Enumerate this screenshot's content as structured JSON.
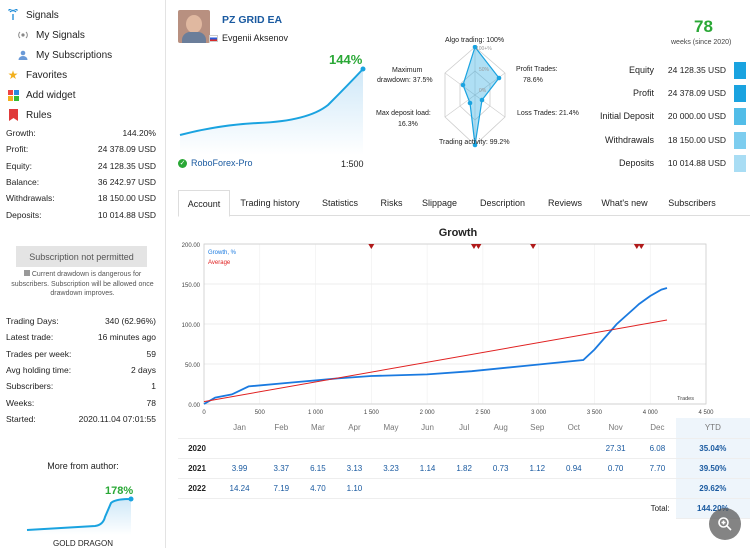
{
  "sidebar": {
    "nav": [
      {
        "label": "Signals",
        "icon": "signal-icon"
      },
      {
        "label": "My Signals",
        "icon": "antenna-icon"
      },
      {
        "label": "My Subscriptions",
        "icon": "subscriptions-icon"
      },
      {
        "label": "Favorites",
        "icon": "star-icon"
      },
      {
        "label": "Add widget",
        "icon": "widget-icon"
      },
      {
        "label": "Rules",
        "icon": "bookmark-icon"
      }
    ],
    "summary": [
      {
        "label": "Growth:",
        "value": "144.20%"
      },
      {
        "label": "Profit:",
        "value": "24 378.09 USD"
      },
      {
        "label": "Equity:",
        "value": "24 128.35 USD"
      },
      {
        "label": "Balance:",
        "value": "36 242.97 USD"
      },
      {
        "label": "Withdrawals:",
        "value": "18 150.00 USD"
      },
      {
        "label": "Deposits:",
        "value": "10 014.88 USD"
      }
    ],
    "subscription_button": "Subscription not permitted",
    "warning": "Current drawdown is dangerous for subscribers. Subscription will be allowed once drawdown improves.",
    "details": [
      {
        "label": "Trading Days:",
        "value": "340 (62.96%)"
      },
      {
        "label": "Latest trade:",
        "value": "16 minutes ago"
      },
      {
        "label": "Trades per week:",
        "value": "59"
      },
      {
        "label": "Avg holding time:",
        "value": "2 days"
      },
      {
        "label": "Subscribers:",
        "value": "1"
      },
      {
        "label": "Weeks:",
        "value": "78"
      },
      {
        "label": "Started:",
        "value": "2020.11.04 07:01:55"
      }
    ],
    "more_title": "More from author:",
    "more_growth": "178%",
    "more_name": "GOLD DRAGON"
  },
  "header": {
    "signal_name": "PZ GRID EA",
    "author": "Evgenii Aksenov",
    "growth": "144%",
    "broker": "RoboForex-Pro",
    "leverage": "1:500",
    "weeks_num": "78",
    "weeks_label": "weeks (since 2020)"
  },
  "radar": {
    "algo": "Algo trading: 100%",
    "profit_trades": "Profit Trades:",
    "profit_trades_val": "78.6%",
    "loss_trades": "Loss Trades: 21.4%",
    "activity": "Trading activity: 99.2%",
    "max_deposit": "Max deposit load:",
    "max_deposit_val": "16.3%",
    "max_dd": "Maximum",
    "max_dd2": "drawdown: 37.5%",
    "ring1": "100+%",
    "ring2": "50%",
    "ring3": "0%"
  },
  "stats": [
    {
      "label": "Equity",
      "value": "24 128.35 USD",
      "color": "#1aa3e0"
    },
    {
      "label": "Profit",
      "value": "24 378.09 USD",
      "color": "#1aa3e0"
    },
    {
      "label": "Initial Deposit",
      "value": "20 000.00 USD",
      "color": "#52bde8"
    },
    {
      "label": "Withdrawals",
      "value": "18 150.00 USD",
      "color": "#7dcdef"
    },
    {
      "label": "Deposits",
      "value": "10 014.88 USD",
      "color": "#a9ddf4"
    }
  ],
  "tabs": [
    "Account",
    "Trading history",
    "Statistics",
    "Risks",
    "Slippage",
    "Description",
    "Reviews",
    "What's new",
    "Subscribers"
  ],
  "chart_data": {
    "type": "line",
    "title": "Growth",
    "legend": [
      "Growth, %",
      "Average"
    ],
    "xlabel": "Trades",
    "x_ticks": [
      "0",
      "500",
      "1 000",
      "1 500",
      "2 000",
      "2 500",
      "3 000",
      "3 500",
      "4 000",
      "4 500"
    ],
    "y_ticks": [
      "0.00",
      "50.00",
      "100.00",
      "150.00",
      "200.00"
    ],
    "xlim": [
      0,
      4500
    ],
    "ylim": [
      0,
      200
    ],
    "series": [
      {
        "name": "Growth, %",
        "color": "#1a7ae0",
        "points": [
          [
            0,
            0
          ],
          [
            100,
            8
          ],
          [
            250,
            12
          ],
          [
            400,
            22
          ],
          [
            800,
            27
          ],
          [
            1200,
            32
          ],
          [
            1500,
            35
          ],
          [
            2000,
            37
          ],
          [
            2400,
            41
          ],
          [
            2900,
            48
          ],
          [
            3400,
            55
          ],
          [
            3500,
            68
          ],
          [
            3700,
            100
          ],
          [
            3900,
            125
          ],
          [
            4000,
            135
          ],
          [
            4100,
            143
          ],
          [
            4150,
            145
          ]
        ]
      },
      {
        "name": "Average",
        "color": "#e02020",
        "points": [
          [
            0,
            3
          ],
          [
            4150,
            105
          ]
        ]
      }
    ]
  },
  "monthly": {
    "months": [
      "Jan",
      "Feb",
      "Mar",
      "Apr",
      "May",
      "Jun",
      "Jul",
      "Aug",
      "Sep",
      "Oct",
      "Nov",
      "Dec",
      "YTD"
    ],
    "rows": [
      {
        "year": "2020",
        "values": [
          "",
          "",
          "",
          "",
          "",
          "",
          "",
          "",
          "",
          "",
          "27.31",
          "6.08",
          "35.04%"
        ]
      },
      {
        "year": "2021",
        "values": [
          "3.99",
          "3.37",
          "6.15",
          "3.13",
          "3.23",
          "1.14",
          "1.82",
          "0.73",
          "1.12",
          "0.94",
          "0.70",
          "7.70",
          "39.50%"
        ]
      },
      {
        "year": "2022",
        "values": [
          "14.24",
          "7.19",
          "4.70",
          "1.10",
          "",
          "",
          "",
          "",
          "",
          "",
          "",
          "",
          "29.62%"
        ]
      }
    ],
    "total_label": "Total:",
    "total_value": "144.20%"
  }
}
